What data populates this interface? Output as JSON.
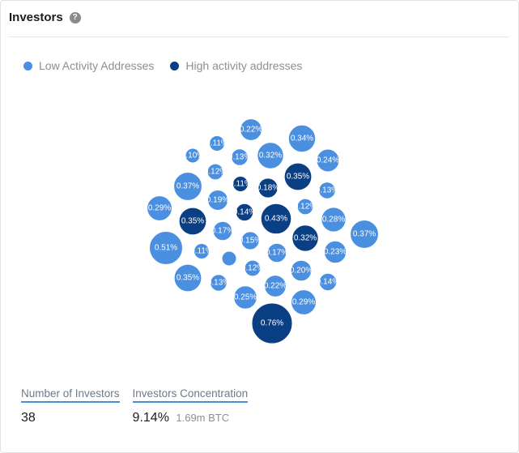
{
  "header": {
    "title": "Investors",
    "help_icon": "question-circle-icon"
  },
  "legend": [
    {
      "label": "Low Activity Addresses",
      "color": "#4A8FE0"
    },
    {
      "label": "High activity addresses",
      "color": "#0B3F84"
    }
  ],
  "chart_data": {
    "type": "bubble",
    "legend_placement": "top-left",
    "series": [
      {
        "name": "Low Activity Addresses",
        "color": "#4A8FE0"
      },
      {
        "name": "High activity addresses",
        "color": "#0B3F84"
      }
    ],
    "bubbles": [
      {
        "label": "0.22%",
        "value": 0.22,
        "series": "Low Activity Addresses"
      },
      {
        "label": "0.34%",
        "value": 0.34,
        "series": "Low Activity Addresses"
      },
      {
        "label": "0.11%",
        "value": 0.11,
        "series": "Low Activity Addresses"
      },
      {
        "label": "0.10%",
        "value": 0.1,
        "series": "Low Activity Addresses"
      },
      {
        "label": "0.13%",
        "value": 0.13,
        "series": "Low Activity Addresses"
      },
      {
        "label": "0.32%",
        "value": 0.32,
        "series": "Low Activity Addresses"
      },
      {
        "label": "0.24%",
        "value": 0.24,
        "series": "Low Activity Addresses"
      },
      {
        "label": "0.12%",
        "value": 0.12,
        "series": "Low Activity Addresses"
      },
      {
        "label": "0.35%",
        "value": 0.35,
        "series": "High activity addresses"
      },
      {
        "label": "0.37%",
        "value": 0.37,
        "series": "Low Activity Addresses"
      },
      {
        "label": "0.11%",
        "value": 0.11,
        "series": "High activity addresses"
      },
      {
        "label": "0.18%",
        "value": 0.18,
        "series": "High activity addresses"
      },
      {
        "label": "0.13%",
        "value": 0.13,
        "series": "Low Activity Addresses"
      },
      {
        "label": "0.19%",
        "value": 0.19,
        "series": "Low Activity Addresses"
      },
      {
        "label": "0.29%",
        "value": 0.29,
        "series": "Low Activity Addresses"
      },
      {
        "label": "0.12%",
        "value": 0.12,
        "series": "Low Activity Addresses"
      },
      {
        "label": "0.14%",
        "value": 0.14,
        "series": "High activity addresses"
      },
      {
        "label": "0.43%",
        "value": 0.43,
        "series": "High activity addresses"
      },
      {
        "label": "0.35%",
        "value": 0.35,
        "series": "High activity addresses"
      },
      {
        "label": "0.28%",
        "value": 0.28,
        "series": "Low Activity Addresses"
      },
      {
        "label": "0.17%",
        "value": 0.17,
        "series": "Low Activity Addresses"
      },
      {
        "label": "0.37%",
        "value": 0.37,
        "series": "Low Activity Addresses"
      },
      {
        "label": "0.15%",
        "value": 0.15,
        "series": "Low Activity Addresses"
      },
      {
        "label": "0.32%",
        "value": 0.32,
        "series": "High activity addresses"
      },
      {
        "label": "0.51%",
        "value": 0.51,
        "series": "Low Activity Addresses"
      },
      {
        "label": "0.11%",
        "value": 0.11,
        "series": "Low Activity Addresses"
      },
      {
        "label": "",
        "value": 0.1,
        "series": "Low Activity Addresses"
      },
      {
        "label": "0.17%",
        "value": 0.17,
        "series": "Low Activity Addresses"
      },
      {
        "label": "0.23%",
        "value": 0.23,
        "series": "Low Activity Addresses"
      },
      {
        "label": "0.12%",
        "value": 0.12,
        "series": "Low Activity Addresses"
      },
      {
        "label": "0.20%",
        "value": 0.2,
        "series": "Low Activity Addresses"
      },
      {
        "label": "0.35%",
        "value": 0.35,
        "series": "Low Activity Addresses"
      },
      {
        "label": "0.13%",
        "value": 0.13,
        "series": "Low Activity Addresses"
      },
      {
        "label": "0.22%",
        "value": 0.22,
        "series": "Low Activity Addresses"
      },
      {
        "label": "0.14%",
        "value": 0.14,
        "series": "Low Activity Addresses"
      },
      {
        "label": "0.25%",
        "value": 0.25,
        "series": "Low Activity Addresses"
      },
      {
        "label": "0.29%",
        "value": 0.29,
        "series": "Low Activity Addresses"
      },
      {
        "label": "0.76%",
        "value": 0.76,
        "series": "High activity addresses"
      }
    ]
  },
  "stats": [
    {
      "label": "Number of Investors",
      "value": "38",
      "sub": ""
    },
    {
      "label": "Investors Concentration",
      "value": "9.14%",
      "sub": "1.69m BTC"
    }
  ]
}
